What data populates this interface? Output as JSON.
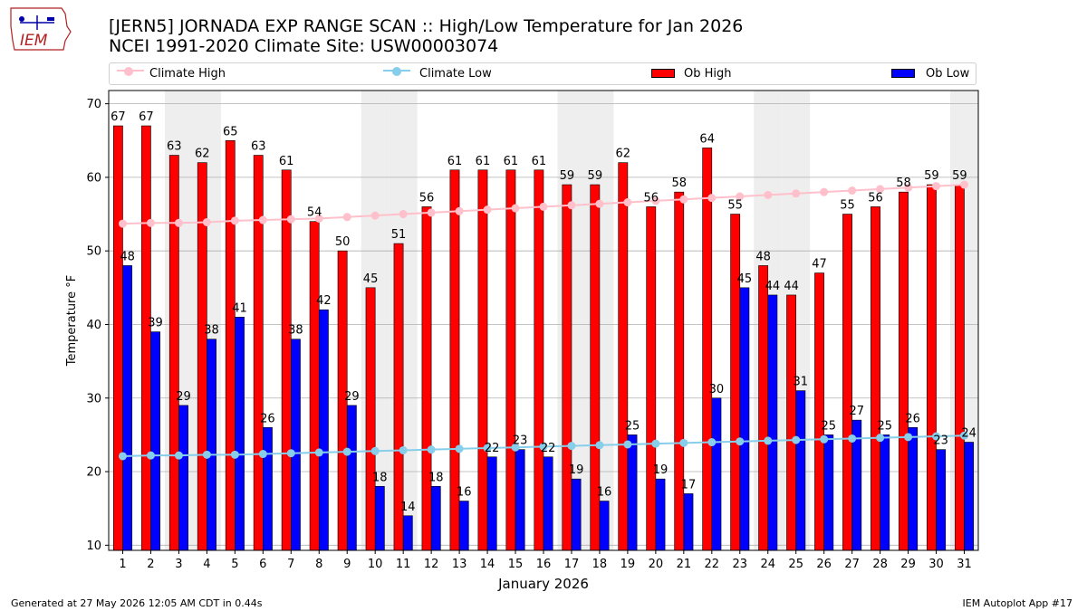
{
  "header": {
    "title_line1": "[JERN5] JORNADA EXP RANGE SCAN :: High/Low Temperature for Jan 2026",
    "title_line2": "NCEI 1991-2020 Climate Site: USW00003074"
  },
  "logo": {
    "text": "IEM"
  },
  "footer": {
    "generated": "Generated at 27 May 2026 12:05 AM CDT in 0.44s",
    "app": "IEM Autoplot App #17"
  },
  "colors": {
    "climate_high": "#ffc0cb",
    "climate_low": "#87ceeb",
    "ob_high": "#ff0000",
    "ob_low": "#0000ff",
    "weekend_band": "#eeeeee",
    "grid": "#b0b0b0"
  },
  "chart_data": {
    "type": "bar",
    "xlabel": "January 2026",
    "ylabel": "Temperature °F",
    "ylim": [
      9.3,
      71.8
    ],
    "yticks": [
      10,
      20,
      30,
      40,
      50,
      60,
      70
    ],
    "grid": "horizontal",
    "legend_position": "top",
    "categories": [
      1,
      2,
      3,
      4,
      5,
      6,
      7,
      8,
      9,
      10,
      11,
      12,
      13,
      14,
      15,
      16,
      17,
      18,
      19,
      20,
      21,
      22,
      23,
      24,
      25,
      26,
      27,
      28,
      29,
      30,
      31
    ],
    "shaded_days": [
      3,
      4,
      10,
      11,
      17,
      18,
      24,
      25,
      31
    ],
    "series": [
      {
        "name": "Climate High",
        "type": "line",
        "values": [
          53.7,
          53.8,
          53.8,
          53.9,
          54.1,
          54.2,
          54.3,
          54.4,
          54.6,
          54.8,
          55.0,
          55.2,
          55.4,
          55.6,
          55.8,
          56.0,
          56.2,
          56.4,
          56.6,
          56.8,
          57.0,
          57.2,
          57.4,
          57.6,
          57.8,
          58.0,
          58.2,
          58.4,
          58.6,
          58.8,
          59.0
        ]
      },
      {
        "name": "Climate Low",
        "type": "line",
        "values": [
          22.1,
          22.2,
          22.2,
          22.3,
          22.3,
          22.4,
          22.5,
          22.6,
          22.7,
          22.8,
          22.9,
          23.0,
          23.1,
          23.2,
          23.3,
          23.4,
          23.5,
          23.6,
          23.7,
          23.8,
          23.9,
          24.0,
          24.1,
          24.2,
          24.3,
          24.4,
          24.5,
          24.6,
          24.7,
          24.8,
          24.9
        ]
      },
      {
        "name": "Ob High",
        "type": "bar",
        "values": [
          67,
          67,
          63,
          62,
          65,
          63,
          61,
          54,
          50,
          45,
          51,
          56,
          61,
          61,
          61,
          61,
          59,
          59,
          62,
          56,
          58,
          64,
          55,
          48,
          44,
          47,
          55,
          56,
          58,
          59,
          59
        ]
      },
      {
        "name": "Ob Low",
        "type": "bar",
        "values": [
          48,
          39,
          29,
          38,
          41,
          26,
          38,
          42,
          29,
          18,
          14,
          18,
          16,
          22,
          23,
          22,
          19,
          16,
          25,
          19,
          17,
          30,
          45,
          44,
          31,
          25,
          27,
          25,
          26,
          23,
          24
        ]
      }
    ]
  }
}
